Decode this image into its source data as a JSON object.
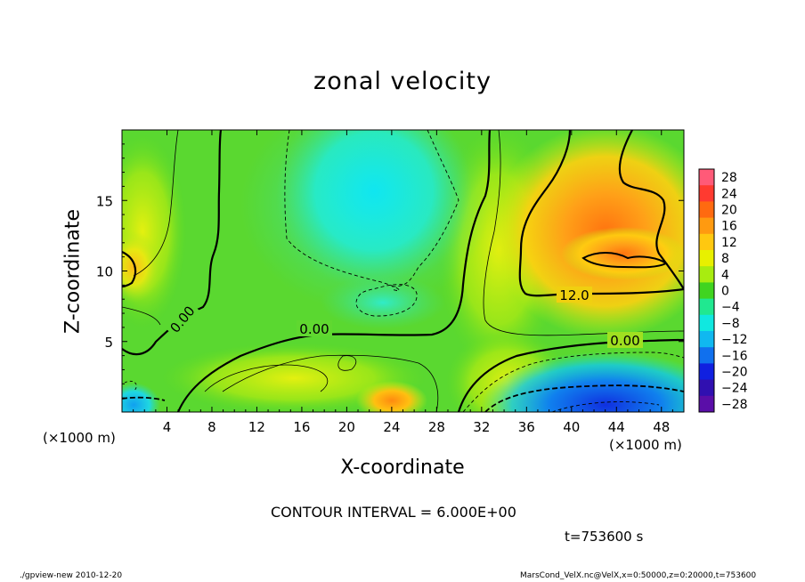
{
  "chart_data": {
    "type": "heatmap",
    "title": "zonal velocity",
    "xlabel": "X-coordinate",
    "ylabel": "Z-coordinate",
    "x_unit_left": "(×1000 m)",
    "x_unit_right": "(×1000 m)",
    "xlim": [
      0,
      50
    ],
    "ylim": [
      0,
      20
    ],
    "xticks": [
      4,
      8,
      12,
      16,
      20,
      24,
      28,
      32,
      36,
      40,
      44,
      48
    ],
    "yticks": [
      5,
      10,
      15
    ],
    "colorbar": {
      "levels": [
        28,
        24,
        20,
        16,
        12,
        8,
        4,
        0,
        -4,
        -8,
        -12,
        -16,
        -20,
        -24,
        -28
      ],
      "colors": [
        "#ff5a78",
        "#ff3a30",
        "#ff6a10",
        "#ff9a10",
        "#ffc810",
        "#e8f000",
        "#a8ec10",
        "#40d420",
        "#20e890",
        "#10e8e0",
        "#10b8f0",
        "#1070ee",
        "#1020e0",
        "#3010b0",
        "#5a0ea8"
      ]
    },
    "contour_labels": [
      "0.00",
      "0.00",
      "12.0",
      "0.00"
    ],
    "contour_interval": "CONTOUR INTERVAL = 6.000E+00",
    "time": "t=753600 s",
    "field_features": [
      {
        "x": 23,
        "z": 15,
        "value": -10
      },
      {
        "x": 42,
        "z": 11,
        "value": 17
      },
      {
        "x": 42,
        "z": 1,
        "value": -20
      },
      {
        "x": 23,
        "z": 0.5,
        "value": 13
      },
      {
        "x": 1,
        "z": 10.5,
        "value": 14
      },
      {
        "x": 0.5,
        "z": 0.5,
        "value": -12
      },
      {
        "x": 24,
        "z": 8,
        "value": -6
      },
      {
        "x": 15,
        "z": 2.5,
        "value": 8
      }
    ]
  },
  "footer": {
    "left": "./gpview-new   2010-12-20",
    "right": "MarsCond_VelX.nc@VelX,x=0:50000,z=0:20000,t=753600"
  }
}
